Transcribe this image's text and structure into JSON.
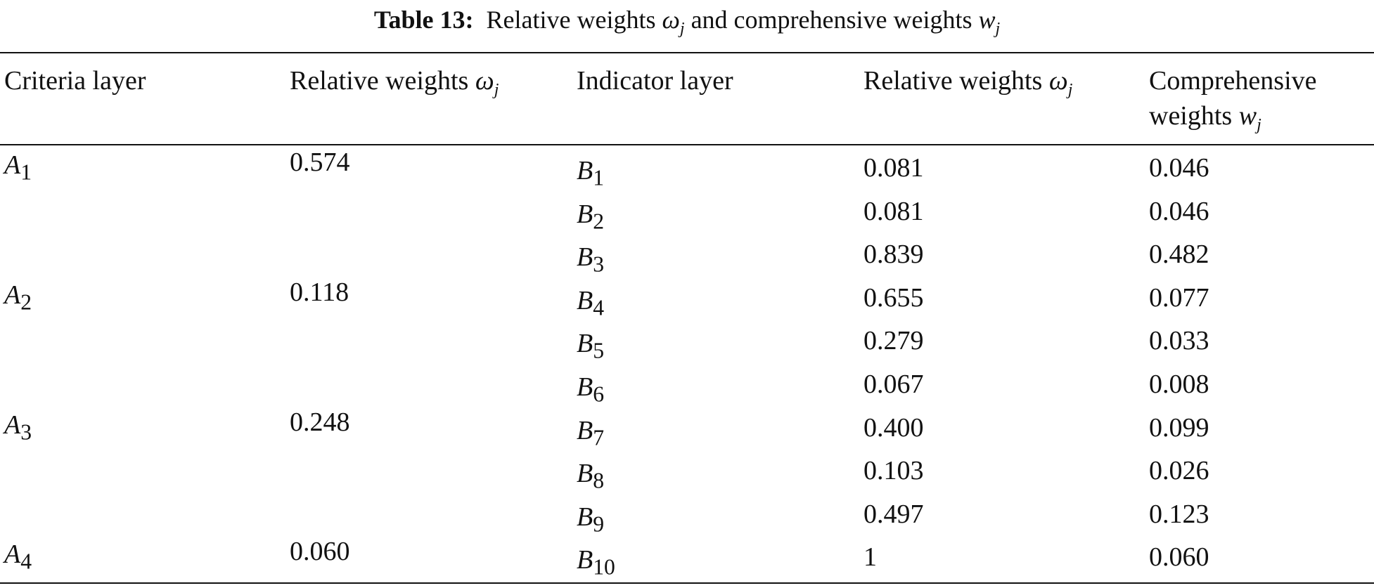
{
  "caption": {
    "label": "Table 13:",
    "text_a": "Relative weights ",
    "omega": "ω",
    "sub_j": "j",
    "text_b": " and comprehensive weights ",
    "w": "w"
  },
  "headers": {
    "criteria_layer": "Criteria layer",
    "relative_weights_1": "Relative weights ",
    "omega": "ω",
    "sub_j": "j",
    "indicator_layer": "Indicator layer",
    "relative_weights_2": "Relative weights ",
    "comprehensive_line1": "Comprehensive",
    "comprehensive_line2": "weights ",
    "w": "w"
  },
  "rows": [
    {
      "criteria": "A",
      "criteria_sub": "1",
      "criteria_weight": "0.574",
      "indicator": "B",
      "indicator_sub": "1",
      "indicator_weight": "0.081",
      "comprehensive": "0.046"
    },
    {
      "criteria": "",
      "criteria_sub": "",
      "criteria_weight": "",
      "indicator": "B",
      "indicator_sub": "2",
      "indicator_weight": "0.081",
      "comprehensive": "0.046"
    },
    {
      "criteria": "",
      "criteria_sub": "",
      "criteria_weight": "",
      "indicator": "B",
      "indicator_sub": "3",
      "indicator_weight": "0.839",
      "comprehensive": "0.482"
    },
    {
      "criteria": "A",
      "criteria_sub": "2",
      "criteria_weight": "0.118",
      "indicator": "B",
      "indicator_sub": "4",
      "indicator_weight": "0.655",
      "comprehensive": "0.077"
    },
    {
      "criteria": "",
      "criteria_sub": "",
      "criteria_weight": "",
      "indicator": "B",
      "indicator_sub": "5",
      "indicator_weight": "0.279",
      "comprehensive": "0.033"
    },
    {
      "criteria": "",
      "criteria_sub": "",
      "criteria_weight": "",
      "indicator": "B",
      "indicator_sub": "6",
      "indicator_weight": "0.067",
      "comprehensive": "0.008"
    },
    {
      "criteria": "A",
      "criteria_sub": "3",
      "criteria_weight": "0.248",
      "indicator": "B",
      "indicator_sub": "7",
      "indicator_weight": "0.400",
      "comprehensive": "0.099"
    },
    {
      "criteria": "",
      "criteria_sub": "",
      "criteria_weight": "",
      "indicator": "B",
      "indicator_sub": "8",
      "indicator_weight": "0.103",
      "comprehensive": "0.026"
    },
    {
      "criteria": "",
      "criteria_sub": "",
      "criteria_weight": "",
      "indicator": "B",
      "indicator_sub": "9",
      "indicator_weight": "0.497",
      "comprehensive": "0.123"
    },
    {
      "criteria": "A",
      "criteria_sub": "4",
      "criteria_weight": "0.060",
      "indicator": "B",
      "indicator_sub": "10",
      "indicator_weight": "1",
      "comprehensive": "0.060"
    }
  ]
}
